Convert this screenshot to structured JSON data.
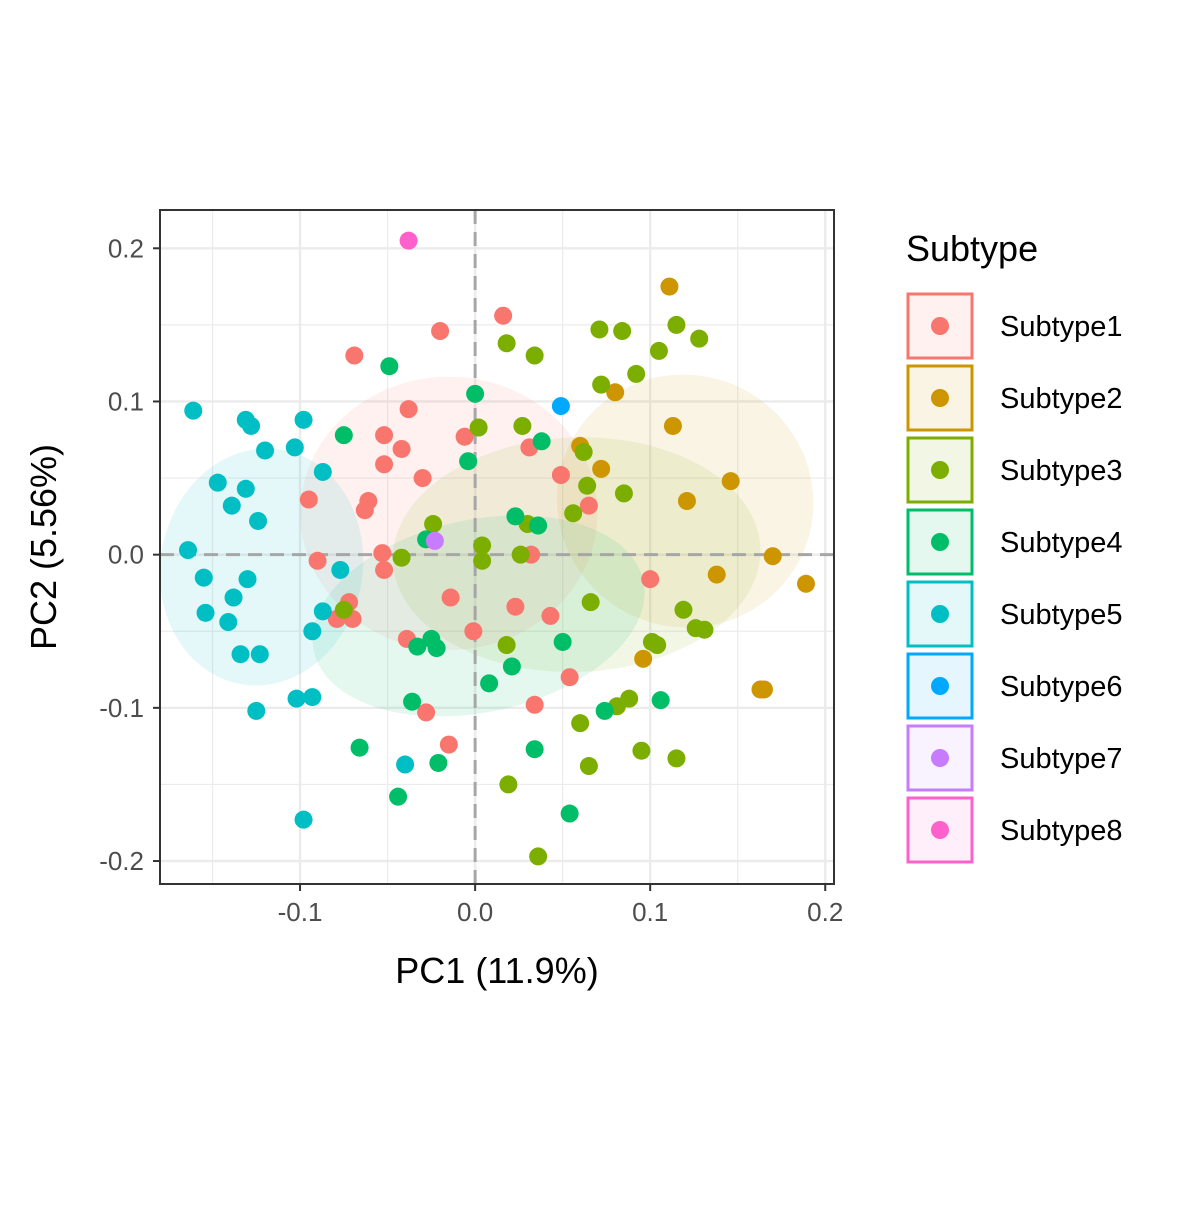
{
  "chart_data": {
    "type": "scatter",
    "xlabel": "PC1 (11.9%)",
    "ylabel": "PC2 (5.56%)",
    "xlim": [
      -0.18,
      0.205
    ],
    "ylim": [
      -0.215,
      0.225
    ],
    "x_ticks": [
      -0.1,
      0.0,
      0.1,
      0.2
    ],
    "x_tick_labels": [
      "-0.1",
      "0.0",
      "0.1",
      "0.2"
    ],
    "y_ticks": [
      -0.2,
      -0.1,
      0.0,
      0.1,
      0.2
    ],
    "y_tick_labels": [
      "-0.2",
      "-0.1",
      "0.0",
      "0.1",
      "0.2"
    ],
    "grid": true,
    "reference_lines": {
      "x": 0,
      "y": 0,
      "style": "dashed"
    },
    "legend": {
      "title": "Subtype",
      "position": "right"
    },
    "series": [
      {
        "name": "Subtype1",
        "color": "#F8766D",
        "ellipse": {
          "cx": -0.015,
          "cy": 0.027,
          "rx": 0.078,
          "ry": 0.097,
          "angle": -90
        },
        "points": [
          [
            -0.069,
            0.13
          ],
          [
            -0.02,
            0.146
          ],
          [
            0.016,
            0.156
          ],
          [
            -0.038,
            0.095
          ],
          [
            -0.052,
            0.078
          ],
          [
            -0.042,
            0.069
          ],
          [
            -0.052,
            0.059
          ],
          [
            -0.03,
            0.05
          ],
          [
            -0.095,
            0.036
          ],
          [
            -0.061,
            0.035
          ],
          [
            -0.063,
            0.029
          ],
          [
            -0.053,
            0.001
          ],
          [
            -0.09,
            -0.004
          ],
          [
            -0.052,
            -0.01
          ],
          [
            -0.072,
            -0.031
          ],
          [
            -0.079,
            -0.042
          ],
          [
            -0.07,
            -0.042
          ],
          [
            -0.014,
            -0.028
          ],
          [
            -0.039,
            -0.055
          ],
          [
            -0.001,
            -0.05
          ],
          [
            0.031,
            0.07
          ],
          [
            0.049,
            0.052
          ],
          [
            0.065,
            0.032
          ],
          [
            0.032,
            0.0
          ],
          [
            0.023,
            -0.034
          ],
          [
            0.043,
            -0.04
          ],
          [
            0.054,
            -0.08
          ],
          [
            0.034,
            -0.098
          ],
          [
            -0.028,
            -0.103
          ],
          [
            -0.015,
            -0.124
          ],
          [
            0.1,
            -0.016
          ],
          [
            -0.006,
            0.077
          ]
        ]
      },
      {
        "name": "Subtype2",
        "color": "#CD9600",
        "ellipse": {
          "cx": 0.12,
          "cy": 0.035,
          "rx": 0.072,
          "ry": 0.084,
          "angle": -65
        },
        "points": [
          [
            0.111,
            0.175
          ],
          [
            0.08,
            0.106
          ],
          [
            0.113,
            0.084
          ],
          [
            0.06,
            0.071
          ],
          [
            0.072,
            0.056
          ],
          [
            0.146,
            0.048
          ],
          [
            0.121,
            0.035
          ],
          [
            0.17,
            -0.001
          ],
          [
            0.138,
            -0.013
          ],
          [
            0.189,
            -0.019
          ],
          [
            0.096,
            -0.068
          ],
          [
            0.163,
            -0.088
          ],
          [
            0.165,
            -0.088
          ]
        ]
      },
      {
        "name": "Subtype3",
        "color": "#7CAE00",
        "ellipse": {
          "cx": 0.058,
          "cy": 0.0,
          "rx": 0.067,
          "ry": 0.12,
          "angle": -92
        },
        "points": [
          [
            0.018,
            0.138
          ],
          [
            0.034,
            0.13
          ],
          [
            0.071,
            0.147
          ],
          [
            0.084,
            0.146
          ],
          [
            0.115,
            0.15
          ],
          [
            0.128,
            0.141
          ],
          [
            0.105,
            0.133
          ],
          [
            0.072,
            0.111
          ],
          [
            0.092,
            0.118
          ],
          [
            0.002,
            0.083
          ],
          [
            0.027,
            0.084
          ],
          [
            0.062,
            0.067
          ],
          [
            0.064,
            0.045
          ],
          [
            0.085,
            0.04
          ],
          [
            0.056,
            0.027
          ],
          [
            0.03,
            0.02
          ],
          [
            -0.024,
            0.02
          ],
          [
            0.004,
            0.006
          ],
          [
            0.004,
            -0.004
          ],
          [
            -0.042,
            -0.002
          ],
          [
            0.026,
            0.0
          ],
          [
            0.066,
            -0.031
          ],
          [
            0.119,
            -0.036
          ],
          [
            0.126,
            -0.048
          ],
          [
            0.131,
            -0.049
          ],
          [
            0.101,
            -0.057
          ],
          [
            0.104,
            -0.059
          ],
          [
            0.018,
            -0.059
          ],
          [
            0.088,
            -0.094
          ],
          [
            0.081,
            -0.099
          ],
          [
            0.06,
            -0.11
          ],
          [
            0.095,
            -0.128
          ],
          [
            0.115,
            -0.133
          ],
          [
            0.065,
            -0.138
          ],
          [
            0.019,
            -0.15
          ],
          [
            0.036,
            -0.197
          ],
          [
            -0.075,
            -0.036
          ]
        ]
      },
      {
        "name": "Subtype4",
        "color": "#00BE67",
        "ellipse": {
          "cx": 0.002,
          "cy": -0.04,
          "rx": 0.055,
          "ry": 0.11,
          "angle": -102
        },
        "points": [
          [
            -0.049,
            0.123
          ],
          [
            0.0,
            0.105
          ],
          [
            -0.075,
            0.078
          ],
          [
            0.038,
            0.074
          ],
          [
            -0.004,
            0.061
          ],
          [
            0.023,
            0.025
          ],
          [
            0.036,
            0.019
          ],
          [
            -0.028,
            0.01
          ],
          [
            0.05,
            -0.057
          ],
          [
            -0.025,
            -0.055
          ],
          [
            -0.033,
            -0.06
          ],
          [
            -0.022,
            -0.061
          ],
          [
            0.021,
            -0.073
          ],
          [
            0.008,
            -0.084
          ],
          [
            -0.036,
            -0.096
          ],
          [
            0.074,
            -0.102
          ],
          [
            0.106,
            -0.095
          ],
          [
            -0.066,
            -0.126
          ],
          [
            0.034,
            -0.127
          ],
          [
            -0.021,
            -0.136
          ],
          [
            -0.044,
            -0.158
          ],
          [
            0.054,
            -0.169
          ]
        ]
      },
      {
        "name": "Subtype5",
        "color": "#00BFC4",
        "ellipse": {
          "cx": -0.122,
          "cy": -0.008,
          "rx": 0.068,
          "ry": 0.066,
          "angle": -80
        },
        "points": [
          [
            -0.161,
            0.094
          ],
          [
            -0.131,
            0.088
          ],
          [
            -0.128,
            0.084
          ],
          [
            -0.098,
            0.088
          ],
          [
            -0.103,
            0.07
          ],
          [
            -0.12,
            0.068
          ],
          [
            -0.087,
            0.054
          ],
          [
            -0.147,
            0.047
          ],
          [
            -0.131,
            0.043
          ],
          [
            -0.139,
            0.032
          ],
          [
            -0.124,
            0.022
          ],
          [
            -0.164,
            0.003
          ],
          [
            -0.155,
            -0.015
          ],
          [
            -0.13,
            -0.016
          ],
          [
            -0.077,
            -0.01
          ],
          [
            -0.138,
            -0.028
          ],
          [
            -0.154,
            -0.038
          ],
          [
            -0.087,
            -0.037
          ],
          [
            -0.141,
            -0.044
          ],
          [
            -0.093,
            -0.05
          ],
          [
            -0.134,
            -0.065
          ],
          [
            -0.123,
            -0.065
          ],
          [
            -0.102,
            -0.094
          ],
          [
            -0.093,
            -0.093
          ],
          [
            -0.125,
            -0.102
          ],
          [
            -0.04,
            -0.137
          ],
          [
            -0.098,
            -0.173
          ]
        ]
      },
      {
        "name": "Subtype6",
        "color": "#00A9FF",
        "points": [
          [
            0.049,
            0.097
          ]
        ]
      },
      {
        "name": "Subtype7",
        "color": "#C77CFF",
        "points": [
          [
            -0.023,
            0.009
          ]
        ]
      },
      {
        "name": "Subtype8",
        "color": "#FF61CC",
        "points": [
          [
            -0.038,
            0.205
          ]
        ]
      }
    ]
  }
}
